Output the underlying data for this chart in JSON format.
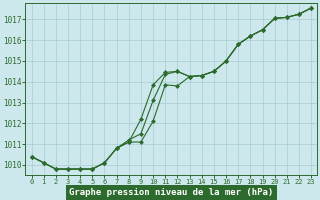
{
  "title": "Graphe pression niveau de la mer (hPa)",
  "hours": [
    0,
    1,
    2,
    3,
    4,
    5,
    6,
    7,
    8,
    9,
    10,
    11,
    12,
    13,
    14,
    15,
    16,
    17,
    18,
    19,
    20,
    21,
    22,
    23
  ],
  "ylim": [
    1009.5,
    1017.8
  ],
  "yticks": [
    1010,
    1011,
    1012,
    1013,
    1014,
    1015,
    1016,
    1017
  ],
  "series": [
    [
      1010.4,
      1010.1,
      1009.8,
      1009.8,
      1009.8,
      1009.8,
      1010.1,
      1010.8,
      1011.1,
      1012.2,
      1013.85,
      1014.45,
      1014.5,
      1014.25,
      1014.3,
      1014.5,
      1015.0,
      1015.8,
      1016.2,
      1016.5,
      1017.05,
      1017.1,
      1017.25,
      1017.55
    ],
    [
      1010.4,
      1010.1,
      1009.8,
      1009.8,
      1009.8,
      1009.8,
      1010.1,
      1010.8,
      1011.1,
      1011.1,
      1012.1,
      1013.85,
      1013.8,
      1014.25,
      1014.3,
      1014.5,
      1015.0,
      1015.8,
      1016.2,
      1016.5,
      1017.05,
      1017.1,
      1017.25,
      1017.55
    ],
    [
      1010.4,
      1010.1,
      1009.8,
      1009.8,
      1009.8,
      1009.8,
      1010.1,
      1010.8,
      1011.2,
      1011.5,
      1013.1,
      1014.35,
      1014.5,
      1014.25,
      1014.3,
      1014.5,
      1015.0,
      1015.8,
      1016.2,
      1016.5,
      1017.05,
      1017.1,
      1017.25,
      1017.55
    ]
  ],
  "line_color": "#2d6a2d",
  "bg_color": "#cce8ec",
  "grid_color": "#a8ccd0",
  "title_bg": "#2d6a2d",
  "title_fg": "#ffffff",
  "figsize": [
    3.2,
    2.0
  ],
  "dpi": 100
}
